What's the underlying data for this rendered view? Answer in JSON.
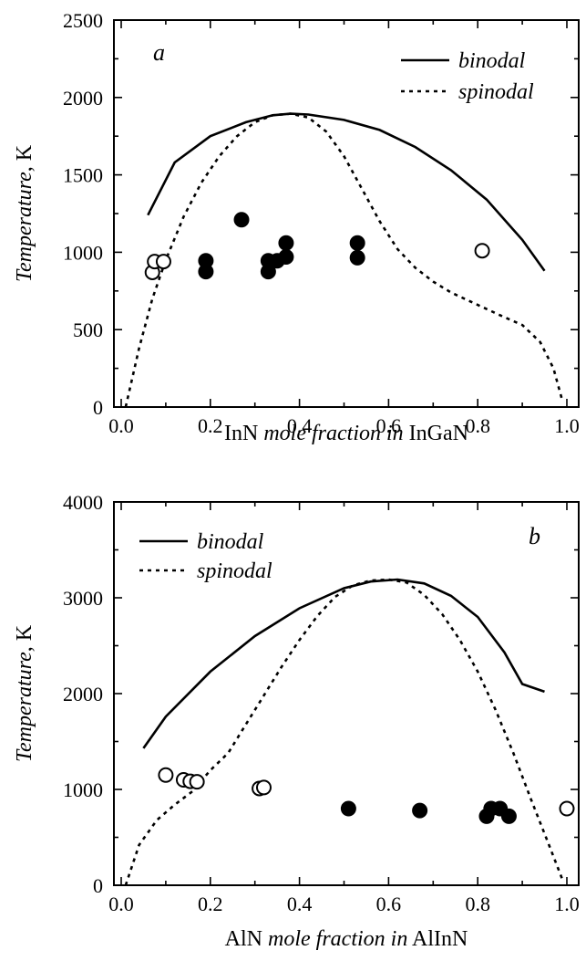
{
  "chart_data": [
    {
      "type": "scatter",
      "panel_label": "a",
      "xlabel_plain_1": "InN",
      "xlabel_italic": "mole fraction in",
      "xlabel_plain_2": "InGaN",
      "ylabel_italic": "Temperature",
      "ylabel_plain": ", K",
      "xlim": [
        0.0,
        1.0
      ],
      "ylim": [
        0,
        2500
      ],
      "xticks": [
        0.0,
        0.2,
        0.4,
        0.6,
        0.8,
        1.0
      ],
      "xtick_labels": [
        "0.0",
        "0.2",
        "0.4",
        "0.6",
        "0.8",
        "1.0"
      ],
      "yticks": [
        0,
        500,
        1000,
        1500,
        2000,
        2500
      ],
      "ytick_labels": [
        "0",
        "500",
        "1000",
        "1500",
        "2000",
        "2500"
      ],
      "legend": {
        "position": "top-right",
        "entries": [
          "binodal",
          "spinodal"
        ]
      },
      "series": [
        {
          "name": "binodal",
          "style": "solid",
          "x": [
            0.06,
            0.12,
            0.2,
            0.28,
            0.34,
            0.38,
            0.42,
            0.5,
            0.58,
            0.66,
            0.74,
            0.82,
            0.9,
            0.95
          ],
          "y": [
            1240,
            1580,
            1750,
            1840,
            1885,
            1895,
            1890,
            1855,
            1790,
            1680,
            1530,
            1340,
            1080,
            880
          ]
        },
        {
          "name": "spinodal",
          "style": "dashed",
          "x": [
            0.01,
            0.04,
            0.07,
            0.1,
            0.14,
            0.18,
            0.22,
            0.26,
            0.3,
            0.34,
            0.38,
            0.42,
            0.46,
            0.5,
            0.54,
            0.58,
            0.62,
            0.66,
            0.7,
            0.74,
            0.8,
            0.86,
            0.9,
            0.94,
            0.97,
            0.99
          ],
          "y": [
            0,
            380,
            700,
            950,
            1230,
            1450,
            1620,
            1750,
            1840,
            1885,
            1895,
            1870,
            1780,
            1620,
            1410,
            1200,
            1020,
            900,
            810,
            740,
            660,
            580,
            530,
            420,
            250,
            40
          ]
        }
      ],
      "points_open": {
        "x": [
          0.07,
          0.075,
          0.095,
          0.81
        ],
        "y": [
          870,
          940,
          940,
          1010
        ]
      },
      "points_filled": {
        "x": [
          0.19,
          0.19,
          0.27,
          0.33,
          0.33,
          0.35,
          0.37,
          0.37,
          0.53,
          0.53
        ],
        "y": [
          875,
          945,
          1210,
          875,
          945,
          945,
          970,
          1060,
          965,
          1060
        ]
      }
    },
    {
      "type": "scatter",
      "panel_label": "b",
      "xlabel_plain_1": "AlN",
      "xlabel_italic": "mole fraction in",
      "xlabel_plain_2": "AlInN",
      "ylabel_italic": "Temperature",
      "ylabel_plain": ", K",
      "xlim": [
        0.0,
        1.0
      ],
      "ylim": [
        0,
        4000
      ],
      "xticks": [
        0.0,
        0.2,
        0.4,
        0.6,
        0.8,
        1.0
      ],
      "xtick_labels": [
        "0.0",
        "0.2",
        "0.4",
        "0.6",
        "0.8",
        "1.0"
      ],
      "yticks": [
        0,
        1000,
        2000,
        3000,
        4000
      ],
      "ytick_labels": [
        "0",
        "1000",
        "2000",
        "3000",
        "4000"
      ],
      "legend": {
        "position": "top-left",
        "entries": [
          "binodal",
          "spinodal"
        ]
      },
      "series": [
        {
          "name": "binodal",
          "style": "solid",
          "x": [
            0.05,
            0.1,
            0.2,
            0.3,
            0.4,
            0.5,
            0.56,
            0.62,
            0.68,
            0.74,
            0.8,
            0.86,
            0.9,
            0.95
          ],
          "y": [
            1430,
            1760,
            2230,
            2600,
            2890,
            3100,
            3170,
            3190,
            3150,
            3020,
            2800,
            2430,
            2100,
            2020
          ]
        },
        {
          "name": "spinodal",
          "style": "dashed",
          "x": [
            0.01,
            0.04,
            0.08,
            0.12,
            0.16,
            0.2,
            0.24,
            0.28,
            0.32,
            0.36,
            0.4,
            0.44,
            0.48,
            0.52,
            0.56,
            0.6,
            0.64,
            0.68,
            0.72,
            0.76,
            0.8,
            0.84,
            0.88,
            0.92,
            0.96,
            0.99
          ],
          "y": [
            0,
            420,
            680,
            840,
            980,
            1200,
            1380,
            1680,
            1980,
            2280,
            2560,
            2810,
            3010,
            3130,
            3180,
            3190,
            3160,
            3030,
            2830,
            2560,
            2230,
            1830,
            1380,
            890,
            420,
            60
          ]
        }
      ],
      "points_open": {
        "x": [
          0.1,
          0.14,
          0.155,
          0.17,
          0.31,
          0.32,
          1.0
        ],
        "y": [
          1150,
          1100,
          1085,
          1080,
          1010,
          1020,
          800
        ]
      },
      "points_filled": {
        "x": [
          0.51,
          0.67,
          0.82,
          0.83,
          0.85,
          0.87
        ],
        "y": [
          800,
          780,
          720,
          800,
          800,
          720
        ]
      }
    }
  ]
}
